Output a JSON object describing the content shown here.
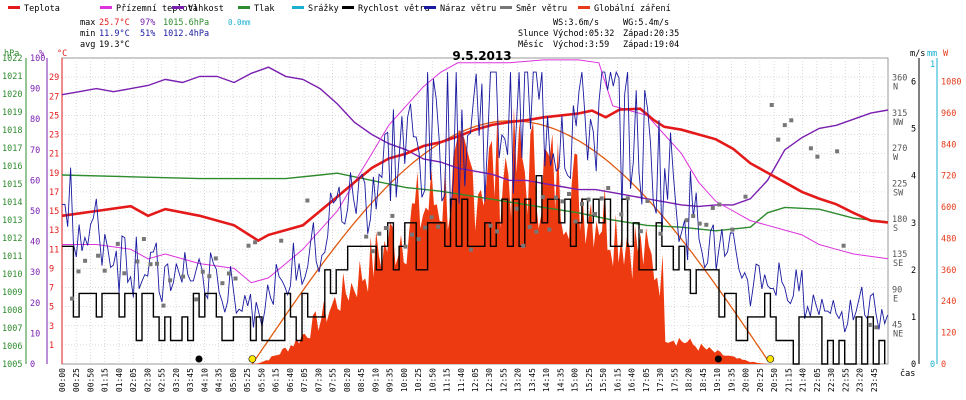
{
  "chart_data": {
    "type": "line",
    "title": "9.5.2013",
    "legend": [
      {
        "name": "Teplota",
        "color": "#e41a1a"
      },
      {
        "name": "Přízemní teplota",
        "color": "#dd33dd"
      },
      {
        "name": "Vlhkost",
        "color": "#7a1fb0"
      },
      {
        "name": "Tlak",
        "color": "#2e8b2e"
      },
      {
        "name": "Srážky",
        "color": "#1ab0d0"
      },
      {
        "name": "Rychlost větru",
        "color": "#000000"
      },
      {
        "name": "Náraz větru",
        "color": "#1a1aa0"
      },
      {
        "name": "Směr větru",
        "color": "#777777"
      },
      {
        "name": "Globální záření",
        "color": "#e63a1a"
      }
    ],
    "stats": {
      "max": {
        "label": "max",
        "temp": "25.7°C",
        "hum": "97%",
        "press": "1015.6hPa",
        "rain": "0.0mm"
      },
      "min": {
        "label": "min",
        "temp": "11.9°C",
        "hum": "51%",
        "press": "1012.4hPa"
      },
      "avg": {
        "label": "avg",
        "temp": "19.3°C"
      }
    },
    "wind_info": {
      "ws": "WS:3.6m/s",
      "wg": "WG:5.4m/s"
    },
    "sun": {
      "label": "Slunce",
      "rise": "Východ:05:32",
      "set": "Západ:20:35"
    },
    "moon": {
      "label": "Měsíc",
      "rise": "Východ:3:59",
      "set": "Západ:19:04"
    },
    "axes": {
      "hpa": {
        "unit": "hPa",
        "ticks": [
          "1005",
          "1006",
          "1007",
          "1008",
          "1009",
          "1010",
          "1011",
          "1012",
          "1013",
          "1014",
          "1015",
          "1016",
          "1017",
          "1018",
          "1019",
          "1020",
          "1021",
          "1022"
        ],
        "range": [
          1005,
          1022
        ]
      },
      "pct": {
        "unit": "%",
        "ticks": [
          "0",
          "10",
          "20",
          "30",
          "40",
          "50",
          "60",
          "70",
          "80",
          "90",
          "100"
        ],
        "range": [
          0,
          100
        ]
      },
      "degc": {
        "unit": "°C",
        "ticks": [
          "1",
          "3",
          "5",
          "7",
          "9",
          "11",
          "13",
          "15",
          "17",
          "19",
          "21",
          "23",
          "25",
          "27",
          "29"
        ],
        "range": [
          -1,
          31
        ]
      },
      "dir": {
        "ticks": [
          {
            "v": "45",
            "l": "NE"
          },
          {
            "v": "90",
            "l": "E"
          },
          {
            "v": "135",
            "l": "SE"
          },
          {
            "v": "180",
            "l": "S"
          },
          {
            "v": "225",
            "l": "SW"
          },
          {
            "v": "270",
            "l": "W"
          },
          {
            "v": "315",
            "l": "NW"
          },
          {
            "v": "360",
            "l": "N"
          }
        ],
        "range": [
          0,
          390
        ]
      },
      "ms": {
        "unit": "m/s",
        "ticks": [
          "0",
          "1",
          "2",
          "3",
          "4",
          "5",
          "6"
        ],
        "range": [
          0,
          6.5
        ]
      },
      "mm": {
        "unit": "mm",
        "ticks": [
          "0",
          "1"
        ]
      },
      "wm": {
        "unit": "W",
        "ticks": [
          "0",
          "120",
          "240",
          "360",
          "480",
          "600",
          "720",
          "840",
          "960",
          "1080"
        ],
        "range": [
          0,
          1170
        ]
      },
      "x_label": "čas",
      "x_ticks": [
        "00:00",
        "00:25",
        "00:50",
        "01:15",
        "01:40",
        "02:05",
        "02:30",
        "02:55",
        "03:20",
        "03:45",
        "04:10",
        "04:35",
        "05:00",
        "05:25",
        "05:50",
        "06:15",
        "06:40",
        "07:05",
        "07:30",
        "07:55",
        "08:20",
        "08:45",
        "09:10",
        "09:35",
        "10:00",
        "10:25",
        "10:50",
        "11:15",
        "11:40",
        "12:05",
        "12:30",
        "12:55",
        "13:20",
        "13:45",
        "14:10",
        "14:35",
        "15:00",
        "15:25",
        "15:50",
        "16:15",
        "16:40",
        "17:05",
        "17:30",
        "17:55",
        "18:20",
        "18:45",
        "19:10",
        "19:35",
        "20:00",
        "20:25",
        "20:50",
        "21:15",
        "21:40",
        "22:05",
        "22:30",
        "22:55",
        "23:20",
        "23:45"
      ]
    },
    "series": {
      "temperature_c": [
        [
          0,
          14.5
        ],
        [
          1,
          15
        ],
        [
          2,
          15.5
        ],
        [
          2.5,
          14.5
        ],
        [
          3,
          15.2
        ],
        [
          4,
          14.5
        ],
        [
          5,
          13.5
        ],
        [
          5.7,
          11.9
        ],
        [
          6,
          12.5
        ],
        [
          6.5,
          13
        ],
        [
          7,
          13.5
        ],
        [
          7.5,
          15
        ],
        [
          8,
          16.5
        ],
        [
          8.5,
          18
        ],
        [
          9,
          19.5
        ],
        [
          9.5,
          20.5
        ],
        [
          10,
          21
        ],
        [
          10.5,
          21.8
        ],
        [
          11,
          22.2
        ],
        [
          11.5,
          22.8
        ],
        [
          12,
          23.5
        ],
        [
          12.5,
          24
        ],
        [
          13,
          24.3
        ],
        [
          13.5,
          24.5
        ],
        [
          14,
          24.8
        ],
        [
          14.5,
          25
        ],
        [
          15,
          25.2
        ],
        [
          15.4,
          25.5
        ],
        [
          15.8,
          24.8
        ],
        [
          16.2,
          25.6
        ],
        [
          16.8,
          25.7
        ],
        [
          17.2,
          24.5
        ],
        [
          17.5,
          23.8
        ],
        [
          18,
          23.5
        ],
        [
          18.5,
          23
        ],
        [
          19,
          22.5
        ],
        [
          19.5,
          21.5
        ],
        [
          20,
          20
        ],
        [
          20.5,
          19
        ],
        [
          21,
          18
        ],
        [
          21.5,
          17
        ],
        [
          22,
          16.3
        ],
        [
          22.5,
          15.7
        ],
        [
          23,
          14.8
        ],
        [
          23.5,
          14
        ],
        [
          24,
          13.8
        ]
      ],
      "ground_temp_c": [
        [
          0,
          11.5
        ],
        [
          1,
          11.5
        ],
        [
          2,
          11
        ],
        [
          2.5,
          10
        ],
        [
          3,
          10.5
        ],
        [
          4,
          9.5
        ],
        [
          5,
          9
        ],
        [
          5.5,
          7.5
        ],
        [
          6,
          8
        ],
        [
          6.5,
          9.5
        ],
        [
          7,
          11
        ],
        [
          7.5,
          13
        ],
        [
          8,
          15
        ],
        [
          8.5,
          18
        ],
        [
          9,
          21
        ],
        [
          9.5,
          24
        ],
        [
          10,
          26
        ],
        [
          10.5,
          28
        ],
        [
          11,
          29.5
        ],
        [
          11.5,
          30.5
        ],
        [
          12,
          30.5
        ],
        [
          13,
          30.5
        ],
        [
          14,
          30.8
        ],
        [
          15,
          30.8
        ],
        [
          15.6,
          30.5
        ],
        [
          16,
          26
        ],
        [
          16.5,
          25.5
        ],
        [
          17,
          25
        ],
        [
          17.5,
          23
        ],
        [
          18,
          21
        ],
        [
          18.5,
          18
        ],
        [
          19,
          16
        ],
        [
          19.5,
          15
        ],
        [
          20,
          14
        ],
        [
          20.5,
          13.5
        ],
        [
          21,
          13
        ],
        [
          21.5,
          12.5
        ],
        [
          22,
          11.5
        ],
        [
          22.5,
          11
        ],
        [
          23,
          10.5
        ],
        [
          24,
          10
        ]
      ],
      "humidity_pct": [
        [
          0,
          88
        ],
        [
          0.5,
          89
        ],
        [
          1,
          90
        ],
        [
          1.5,
          89
        ],
        [
          2,
          90
        ],
        [
          2.5,
          91
        ],
        [
          3,
          93
        ],
        [
          3.5,
          92
        ],
        [
          4,
          94
        ],
        [
          4.5,
          94
        ],
        [
          5,
          92
        ],
        [
          5.5,
          95
        ],
        [
          6,
          97
        ],
        [
          6.5,
          94
        ],
        [
          7,
          93
        ],
        [
          7.5,
          90
        ],
        [
          8,
          85
        ],
        [
          8.5,
          79
        ],
        [
          9,
          75
        ],
        [
          9.5,
          72
        ],
        [
          10,
          70
        ],
        [
          10.5,
          67
        ],
        [
          11,
          66
        ],
        [
          11.5,
          64
        ],
        [
          12,
          63
        ],
        [
          12.5,
          62
        ],
        [
          13,
          60
        ],
        [
          13.5,
          60
        ],
        [
          14,
          59
        ],
        [
          14.5,
          58
        ],
        [
          15,
          57
        ],
        [
          15.5,
          57
        ],
        [
          16,
          56
        ],
        [
          16.5,
          55
        ],
        [
          17,
          54
        ],
        [
          17.5,
          53
        ],
        [
          18,
          52
        ],
        [
          18.5,
          51.5
        ],
        [
          19,
          52
        ],
        [
          19.5,
          52
        ],
        [
          20,
          54
        ],
        [
          20.5,
          60
        ],
        [
          21,
          70
        ],
        [
          21.5,
          74
        ],
        [
          22,
          77
        ],
        [
          22.5,
          78
        ],
        [
          23,
          80
        ],
        [
          23.5,
          82
        ],
        [
          24,
          83
        ]
      ],
      "pressure_hpa": [
        [
          0,
          1015.5
        ],
        [
          2,
          1015.4
        ],
        [
          4,
          1015.3
        ],
        [
          5.5,
          1015.3
        ],
        [
          6.5,
          1015.3
        ],
        [
          7.5,
          1015.5
        ],
        [
          8,
          1015.6
        ],
        [
          9,
          1015.2
        ],
        [
          10,
          1014.8
        ],
        [
          11,
          1014.6
        ],
        [
          12,
          1014.3
        ],
        [
          13,
          1014.0
        ],
        [
          14,
          1013.7
        ],
        [
          15,
          1013.4
        ],
        [
          16,
          1013.0
        ],
        [
          17,
          1012.7
        ],
        [
          18,
          1012.6
        ],
        [
          19,
          1012.4
        ],
        [
          20,
          1012.6
        ],
        [
          20.5,
          1013.4
        ],
        [
          21,
          1013.7
        ],
        [
          22,
          1013.6
        ],
        [
          23,
          1013.1
        ],
        [
          24,
          1012.9
        ]
      ],
      "radiation_peak_w": 940,
      "radiation_env_w": 930,
      "sunrise_h": 5.53,
      "sunset_h": 20.58,
      "moonrise_h": 3.98,
      "moonset_h": 19.07,
      "wind_ms_base": [
        [
          0,
          1.8
        ],
        [
          1,
          1.5
        ],
        [
          2,
          1.2
        ],
        [
          3,
          0.9
        ],
        [
          4,
          1.0
        ],
        [
          5,
          0.7
        ],
        [
          6,
          0.6
        ],
        [
          7,
          1.2
        ],
        [
          8,
          1.8
        ],
        [
          9,
          2.2
        ],
        [
          10,
          2.6
        ],
        [
          11,
          2.8
        ],
        [
          12,
          3.0
        ],
        [
          13,
          3.1
        ],
        [
          14,
          3.2
        ],
        [
          15,
          3.0
        ],
        [
          16,
          3.0
        ],
        [
          17,
          2.6
        ],
        [
          18,
          2.0
        ],
        [
          19,
          1.3
        ],
        [
          20,
          0.9
        ],
        [
          21,
          0.8
        ],
        [
          22,
          0.6
        ],
        [
          23,
          0.5
        ],
        [
          24,
          0.5
        ]
      ],
      "wind_dir_deg": [
        [
          0,
          88
        ],
        [
          1,
          115
        ],
        [
          2,
          140
        ],
        [
          2.5,
          150
        ],
        [
          3,
          90
        ],
        [
          4,
          100
        ],
        [
          5,
          135
        ],
        [
          6,
          160
        ],
        [
          7,
          185
        ],
        [
          8,
          165
        ],
        [
          9,
          160
        ],
        [
          10,
          165
        ],
        [
          11,
          175
        ],
        [
          12,
          165
        ],
        [
          13,
          170
        ],
        [
          14,
          190
        ],
        [
          15,
          210
        ],
        [
          16,
          200
        ],
        [
          17,
          195
        ],
        [
          18,
          175
        ],
        [
          19,
          175
        ],
        [
          19.5,
          185
        ],
        [
          20,
          200
        ],
        [
          20.3,
          305
        ],
        [
          21,
          315
        ],
        [
          21.5,
          290
        ],
        [
          22,
          280
        ],
        [
          22.5,
          285
        ],
        [
          23,
          30
        ],
        [
          23.5,
          50
        ],
        [
          24,
          90
        ]
      ]
    }
  }
}
